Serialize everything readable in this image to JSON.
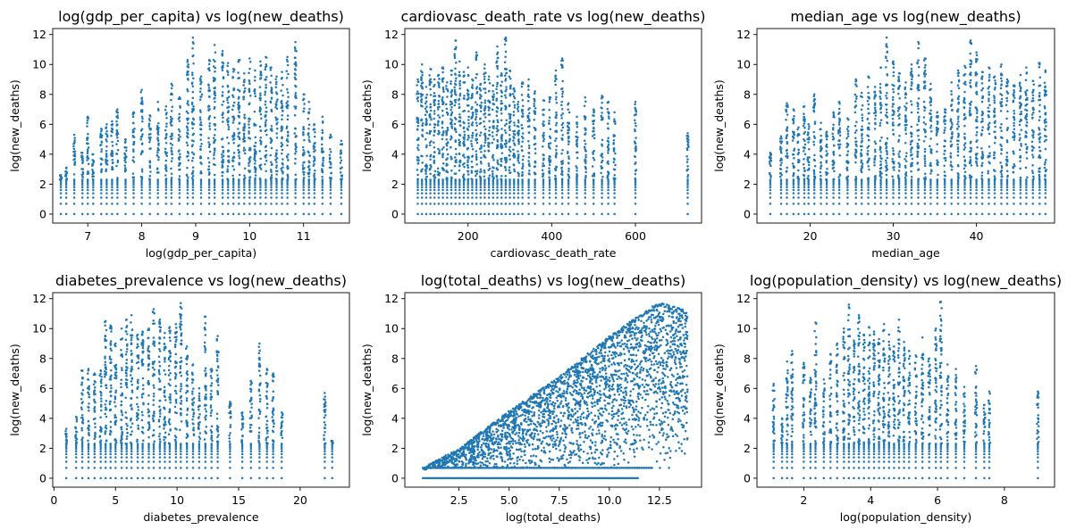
{
  "chart_data": [
    {
      "type": "scatter",
      "title": "log(gdp_per_capita) vs log(new_deaths)",
      "xlabel": "log(gdp_per_capita)",
      "ylabel": "log(new_deaths)",
      "xlim": [
        6.35,
        11.85
      ],
      "ylim": [
        -0.6,
        12.4
      ],
      "xticks": [
        7,
        8,
        9,
        10,
        11
      ],
      "xtick_labels": [
        "7",
        "8",
        "9",
        "10",
        "11"
      ],
      "yticks": [
        0,
        2,
        4,
        6,
        8,
        10,
        12
      ],
      "ytick_labels": [
        "0",
        "2",
        "4",
        "6",
        "8",
        "10",
        "12"
      ],
      "color": "#1f77b4",
      "grid": false,
      "columns": [
        {
          "x": 6.5,
          "max": 2.6
        },
        {
          "x": 6.6,
          "max": 3.1
        },
        {
          "x": 6.75,
          "max": 5.3
        },
        {
          "x": 6.9,
          "max": 4.1
        },
        {
          "x": 7.0,
          "max": 6.5
        },
        {
          "x": 7.1,
          "max": 4.0
        },
        {
          "x": 7.25,
          "max": 5.7
        },
        {
          "x": 7.35,
          "max": 6.0
        },
        {
          "x": 7.45,
          "max": 6.2
        },
        {
          "x": 7.55,
          "max": 7.0
        },
        {
          "x": 7.7,
          "max": 5.0
        },
        {
          "x": 7.85,
          "max": 6.8
        },
        {
          "x": 8.0,
          "max": 8.3
        },
        {
          "x": 8.15,
          "max": 6.6
        },
        {
          "x": 8.3,
          "max": 7.5
        },
        {
          "x": 8.45,
          "max": 7.2
        },
        {
          "x": 8.55,
          "max": 8.7
        },
        {
          "x": 8.7,
          "max": 7.8
        },
        {
          "x": 8.85,
          "max": 10.3
        },
        {
          "x": 8.95,
          "max": 11.8
        },
        {
          "x": 9.1,
          "max": 9.2
        },
        {
          "x": 9.25,
          "max": 10.3
        },
        {
          "x": 9.35,
          "max": 11.3
        },
        {
          "x": 9.5,
          "max": 10.9
        },
        {
          "x": 9.6,
          "max": 10.1
        },
        {
          "x": 9.7,
          "max": 9.7
        },
        {
          "x": 9.8,
          "max": 10.3
        },
        {
          "x": 9.9,
          "max": 9.4
        },
        {
          "x": 10.0,
          "max": 10.4
        },
        {
          "x": 10.1,
          "max": 9.6
        },
        {
          "x": 10.2,
          "max": 10.2
        },
        {
          "x": 10.3,
          "max": 10.5
        },
        {
          "x": 10.4,
          "max": 9.8
        },
        {
          "x": 10.5,
          "max": 9.2
        },
        {
          "x": 10.6,
          "max": 9.5
        },
        {
          "x": 10.7,
          "max": 10.5
        },
        {
          "x": 10.85,
          "max": 11.5
        },
        {
          "x": 11.0,
          "max": 8.0
        },
        {
          "x": 11.1,
          "max": 7.5
        },
        {
          "x": 11.2,
          "max": 6.0
        },
        {
          "x": 11.35,
          "max": 6.5
        },
        {
          "x": 11.5,
          "max": 5.3
        },
        {
          "x": 11.7,
          "max": 4.9
        }
      ]
    },
    {
      "type": "scatter",
      "title": "cardiovasc_death_rate vs log(new_deaths)",
      "xlabel": "cardiovasc_death_rate",
      "ylabel": "log(new_deaths)",
      "xlim": [
        49,
        758
      ],
      "ylim": [
        -0.6,
        12.4
      ],
      "xticks": [
        200,
        400,
        600
      ],
      "xtick_labels": [
        "200",
        "400",
        "600"
      ],
      "yticks": [
        0,
        2,
        4,
        6,
        8,
        10,
        12
      ],
      "ytick_labels": [
        "0",
        "2",
        "4",
        "6",
        "8",
        "10",
        "12"
      ],
      "color": "#1f77b4",
      "grid": false,
      "columns": [
        {
          "x": 80,
          "max": 9.0
        },
        {
          "x": 90,
          "max": 10.0
        },
        {
          "x": 100,
          "max": 8.5
        },
        {
          "x": 110,
          "max": 9.7
        },
        {
          "x": 120,
          "max": 9.0
        },
        {
          "x": 130,
          "max": 9.3
        },
        {
          "x": 140,
          "max": 9.8
        },
        {
          "x": 150,
          "max": 8.8
        },
        {
          "x": 160,
          "max": 9.6
        },
        {
          "x": 170,
          "max": 11.6
        },
        {
          "x": 180,
          "max": 10.2
        },
        {
          "x": 190,
          "max": 9.5
        },
        {
          "x": 200,
          "max": 9.8
        },
        {
          "x": 210,
          "max": 9.0
        },
        {
          "x": 220,
          "max": 10.8
        },
        {
          "x": 230,
          "max": 8.7
        },
        {
          "x": 240,
          "max": 10.0
        },
        {
          "x": 250,
          "max": 9.2
        },
        {
          "x": 260,
          "max": 8.6
        },
        {
          "x": 270,
          "max": 11.2
        },
        {
          "x": 280,
          "max": 9.4
        },
        {
          "x": 290,
          "max": 11.8
        },
        {
          "x": 300,
          "max": 9.6
        },
        {
          "x": 310,
          "max": 8.4
        },
        {
          "x": 320,
          "max": 7.5
        },
        {
          "x": 330,
          "max": 8.8
        },
        {
          "x": 345,
          "max": 9.0
        },
        {
          "x": 360,
          "max": 8.2
        },
        {
          "x": 380,
          "max": 7.6
        },
        {
          "x": 395,
          "max": 7.8
        },
        {
          "x": 410,
          "max": 9.6
        },
        {
          "x": 425,
          "max": 10.4
        },
        {
          "x": 440,
          "max": 7.4
        },
        {
          "x": 460,
          "max": 6.5
        },
        {
          "x": 480,
          "max": 7.8
        },
        {
          "x": 500,
          "max": 7.0
        },
        {
          "x": 520,
          "max": 7.9
        },
        {
          "x": 535,
          "max": 7.5
        },
        {
          "x": 550,
          "max": 6.8
        },
        {
          "x": 600,
          "max": 7.5
        },
        {
          "x": 725,
          "max": 5.4
        }
      ]
    },
    {
      "type": "scatter",
      "title": "median_age vs log(new_deaths)",
      "xlabel": "median_age",
      "ylabel": "log(new_deaths)",
      "xlim": [
        13.6,
        49.4
      ],
      "ylim": [
        -0.6,
        12.4
      ],
      "xticks": [
        20,
        30,
        40
      ],
      "xtick_labels": [
        "20",
        "30",
        "40"
      ],
      "yticks": [
        0,
        2,
        4,
        6,
        8,
        10,
        12
      ],
      "ytick_labels": [
        "0",
        "2",
        "4",
        "6",
        "8",
        "10",
        "12"
      ],
      "color": "#1f77b4",
      "grid": false,
      "columns": [
        {
          "x": 15.2,
          "max": 4.1
        },
        {
          "x": 16.5,
          "max": 5.2
        },
        {
          "x": 17.2,
          "max": 7.4
        },
        {
          "x": 18.0,
          "max": 7.0
        },
        {
          "x": 18.6,
          "max": 5.8
        },
        {
          "x": 19.3,
          "max": 7.2
        },
        {
          "x": 19.8,
          "max": 6.0
        },
        {
          "x": 20.5,
          "max": 8.0
        },
        {
          "x": 21.3,
          "max": 6.1
        },
        {
          "x": 22.0,
          "max": 5.5
        },
        {
          "x": 22.8,
          "max": 6.8
        },
        {
          "x": 23.5,
          "max": 7.5
        },
        {
          "x": 24.5,
          "max": 6.4
        },
        {
          "x": 25.5,
          "max": 9.0
        },
        {
          "x": 26.2,
          "max": 8.1
        },
        {
          "x": 27.0,
          "max": 9.2
        },
        {
          "x": 27.8,
          "max": 8.5
        },
        {
          "x": 28.5,
          "max": 9.8
        },
        {
          "x": 29.2,
          "max": 11.8
        },
        {
          "x": 30.0,
          "max": 10.2
        },
        {
          "x": 30.7,
          "max": 9.4
        },
        {
          "x": 31.5,
          "max": 8.8
        },
        {
          "x": 32.2,
          "max": 10.0
        },
        {
          "x": 33.0,
          "max": 11.5
        },
        {
          "x": 33.8,
          "max": 10.4
        },
        {
          "x": 34.5,
          "max": 8.7
        },
        {
          "x": 35.3,
          "max": 6.8
        },
        {
          "x": 36.2,
          "max": 7.0
        },
        {
          "x": 37.0,
          "max": 8.8
        },
        {
          "x": 37.8,
          "max": 9.6
        },
        {
          "x": 38.6,
          "max": 9.9
        },
        {
          "x": 39.3,
          "max": 11.6
        },
        {
          "x": 40.0,
          "max": 10.8
        },
        {
          "x": 40.7,
          "max": 9.5
        },
        {
          "x": 41.5,
          "max": 9.8
        },
        {
          "x": 42.2,
          "max": 9.2
        },
        {
          "x": 43.0,
          "max": 10.0
        },
        {
          "x": 43.7,
          "max": 9.0
        },
        {
          "x": 44.5,
          "max": 8.6
        },
        {
          "x": 45.3,
          "max": 9.3
        },
        {
          "x": 46.0,
          "max": 9.8
        },
        {
          "x": 46.8,
          "max": 8.9
        },
        {
          "x": 47.6,
          "max": 10.1
        },
        {
          "x": 48.3,
          "max": 9.6
        }
      ]
    },
    {
      "type": "scatter",
      "title": "diabetes_prevalence vs log(new_deaths)",
      "xlabel": "diabetes_prevalence",
      "ylabel": "log(new_deaths)",
      "xlim": [
        -0.1,
        24.0
      ],
      "ylim": [
        -0.6,
        12.4
      ],
      "xticks": [
        0,
        5,
        10,
        15,
        20
      ],
      "xtick_labels": [
        "0",
        "5",
        "10",
        "15",
        "20"
      ],
      "yticks": [
        0,
        2,
        4,
        6,
        8,
        10,
        12
      ],
      "ytick_labels": [
        "0",
        "2",
        "4",
        "6",
        "8",
        "10",
        "12"
      ],
      "color": "#1f77b4",
      "grid": false,
      "columns": [
        {
          "x": 1.0,
          "max": 3.3
        },
        {
          "x": 1.8,
          "max": 4.1
        },
        {
          "x": 2.3,
          "max": 7.2
        },
        {
          "x": 2.8,
          "max": 7.3
        },
        {
          "x": 3.3,
          "max": 7.0
        },
        {
          "x": 3.8,
          "max": 7.2
        },
        {
          "x": 4.2,
          "max": 10.5
        },
        {
          "x": 4.6,
          "max": 10.2
        },
        {
          "x": 5.0,
          "max": 9.0
        },
        {
          "x": 5.5,
          "max": 10.0
        },
        {
          "x": 5.9,
          "max": 10.6
        },
        {
          "x": 6.3,
          "max": 10.9
        },
        {
          "x": 6.8,
          "max": 9.6
        },
        {
          "x": 7.2,
          "max": 9.8
        },
        {
          "x": 7.7,
          "max": 10.0
        },
        {
          "x": 8.1,
          "max": 11.3
        },
        {
          "x": 8.6,
          "max": 10.6
        },
        {
          "x": 9.0,
          "max": 9.7
        },
        {
          "x": 9.4,
          "max": 10.1
        },
        {
          "x": 9.9,
          "max": 10.3
        },
        {
          "x": 10.3,
          "max": 11.7
        },
        {
          "x": 10.8,
          "max": 8.8
        },
        {
          "x": 11.3,
          "max": 7.6
        },
        {
          "x": 11.8,
          "max": 6.0
        },
        {
          "x": 12.3,
          "max": 10.8
        },
        {
          "x": 12.8,
          "max": 7.3
        },
        {
          "x": 13.3,
          "max": 9.5
        },
        {
          "x": 14.3,
          "max": 5.1
        },
        {
          "x": 15.3,
          "max": 4.4
        },
        {
          "x": 16.0,
          "max": 6.5
        },
        {
          "x": 16.7,
          "max": 9.0
        },
        {
          "x": 17.3,
          "max": 7.3
        },
        {
          "x": 17.8,
          "max": 7.0
        },
        {
          "x": 18.5,
          "max": 4.4
        },
        {
          "x": 22.0,
          "max": 5.7
        },
        {
          "x": 22.6,
          "max": 2.5
        }
      ]
    },
    {
      "type": "scatter",
      "title": "log(total_deaths) vs log(new_deaths)",
      "xlabel": "log(total_deaths)",
      "ylabel": "log(new_deaths)",
      "xlim": [
        -0.2,
        14.6
      ],
      "ylim": [
        -0.6,
        12.4
      ],
      "xticks": [
        2.5,
        5.0,
        7.5,
        10.0,
        12.5
      ],
      "xtick_labels": [
        "2.5",
        "5.0",
        "7.5",
        "10.0",
        "12.5"
      ],
      "yticks": [
        0,
        2,
        4,
        6,
        8,
        10,
        12
      ],
      "ytick_labels": [
        "0",
        "2",
        "4",
        "6",
        "8",
        "10",
        "12"
      ],
      "color": "#1f77b4",
      "grid": false,
      "upper_envelope": [
        [
          0.7,
          0.7
        ],
        [
          2.5,
          2.0
        ],
        [
          5.0,
          4.5
        ],
        [
          7.5,
          6.8
        ],
        [
          10.0,
          9.5
        ],
        [
          12.5,
          11.8
        ],
        [
          13.9,
          11.2
        ]
      ],
      "x_range_nonzero": [
        0.7,
        13.9
      ],
      "x_range_zero": [
        0.7,
        11.5
      ]
    },
    {
      "type": "scatter",
      "title": "log(population_density) vs log(new_deaths)",
      "xlabel": "log(population_density)",
      "ylabel": "log(new_deaths)",
      "xlim": [
        0.6,
        9.5
      ],
      "ylim": [
        -0.6,
        12.4
      ],
      "xticks": [
        2,
        4,
        6,
        8
      ],
      "xtick_labels": [
        "2",
        "4",
        "6",
        "8"
      ],
      "yticks": [
        0,
        2,
        4,
        6,
        8,
        10,
        12
      ],
      "ytick_labels": [
        "0",
        "2",
        "4",
        "6",
        "8",
        "10",
        "12"
      ],
      "color": "#1f77b4",
      "grid": false,
      "columns": [
        {
          "x": 1.1,
          "max": 6.3
        },
        {
          "x": 1.35,
          "max": 4.0
        },
        {
          "x": 1.5,
          "max": 7.8
        },
        {
          "x": 1.65,
          "max": 8.5
        },
        {
          "x": 2.0,
          "max": 7.7
        },
        {
          "x": 2.2,
          "max": 6.7
        },
        {
          "x": 2.35,
          "max": 10.4
        },
        {
          "x": 2.6,
          "max": 6.6
        },
        {
          "x": 2.8,
          "max": 8.3
        },
        {
          "x": 3.0,
          "max": 9.0
        },
        {
          "x": 3.2,
          "max": 10.0
        },
        {
          "x": 3.35,
          "max": 11.6
        },
        {
          "x": 3.5,
          "max": 9.2
        },
        {
          "x": 3.65,
          "max": 10.9
        },
        {
          "x": 3.8,
          "max": 9.6
        },
        {
          "x": 3.95,
          "max": 10.1
        },
        {
          "x": 4.1,
          "max": 9.8
        },
        {
          "x": 4.25,
          "max": 9.3
        },
        {
          "x": 4.4,
          "max": 10.3
        },
        {
          "x": 4.55,
          "max": 9.6
        },
        {
          "x": 4.7,
          "max": 8.8
        },
        {
          "x": 4.85,
          "max": 10.6
        },
        {
          "x": 5.0,
          "max": 9.1
        },
        {
          "x": 5.15,
          "max": 8.5
        },
        {
          "x": 5.35,
          "max": 8.2
        },
        {
          "x": 5.55,
          "max": 9.4
        },
        {
          "x": 5.75,
          "max": 8.0
        },
        {
          "x": 5.95,
          "max": 10.0
        },
        {
          "x": 6.1,
          "max": 11.8
        },
        {
          "x": 6.3,
          "max": 7.6
        },
        {
          "x": 6.55,
          "max": 7.3
        },
        {
          "x": 6.8,
          "max": 6.1
        },
        {
          "x": 7.15,
          "max": 7.5
        },
        {
          "x": 7.4,
          "max": 4.9
        },
        {
          "x": 7.55,
          "max": 5.8
        },
        {
          "x": 9.0,
          "max": 5.8
        }
      ]
    }
  ]
}
